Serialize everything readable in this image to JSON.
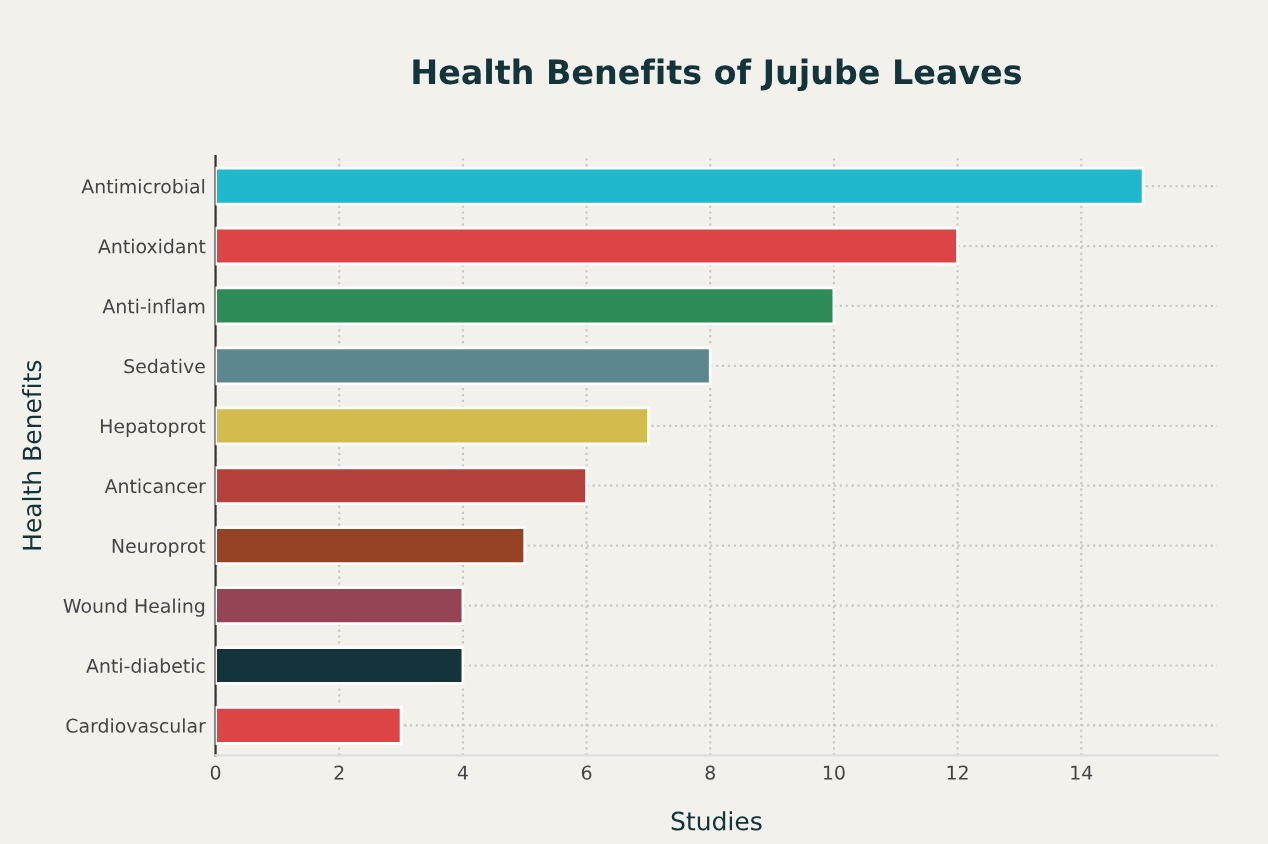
{
  "chart_data": {
    "type": "bar",
    "orientation": "horizontal",
    "title": "Health Benefits of Jujube Leaves",
    "xlabel": "Studies",
    "ylabel": "Health Benefits",
    "categories": [
      "Antimicrobial",
      "Antioxidant",
      "Anti-inflam",
      "Sedative",
      "Hepatoprot",
      "Anticancer",
      "Neuroprot",
      "Wound Healing",
      "Anti-diabetic",
      "Cardiovascular"
    ],
    "values": [
      15,
      12,
      10,
      8,
      7,
      6,
      5,
      4,
      4,
      3
    ],
    "colors": [
      "#1fb8cd",
      "#db4545",
      "#2e8b57",
      "#5d878f",
      "#d2ba4c",
      "#b4413c",
      "#964325",
      "#944454",
      "#13343b",
      "#db4545"
    ],
    "xlim": [
      0,
      16.2
    ],
    "xticks": [
      0,
      2,
      4,
      6,
      8,
      10,
      12,
      14
    ],
    "grid": true
  }
}
